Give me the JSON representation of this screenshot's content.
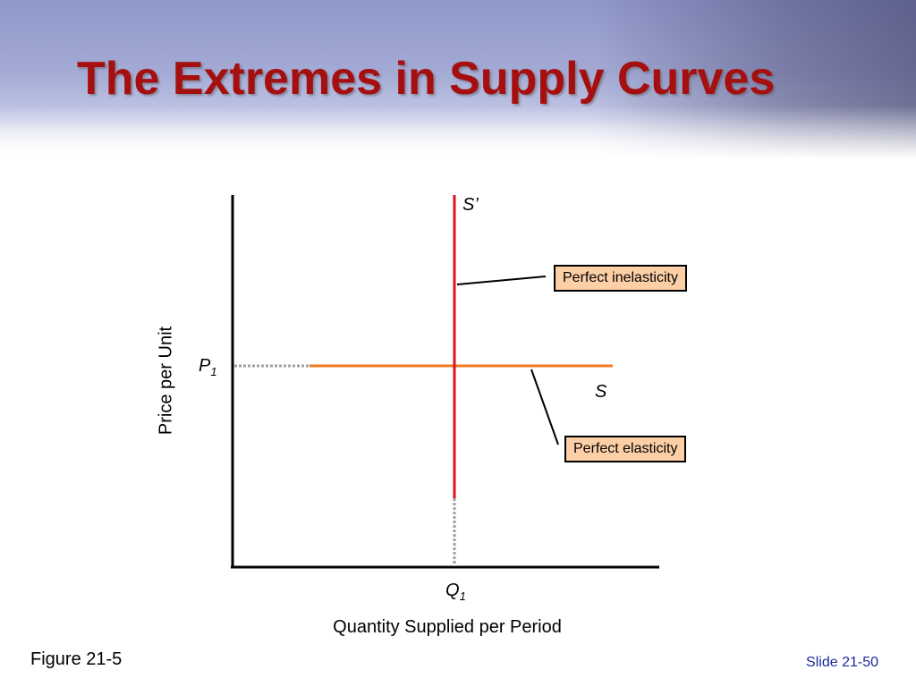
{
  "slide": {
    "title": "The Extremes in Supply Curves",
    "figure_label": "Figure 21-5",
    "slide_number": "Slide 21-50"
  },
  "diagram": {
    "y_axis_label": "Price per Unit",
    "x_axis_label": "Quantity Supplied per Period",
    "price_label": "P",
    "price_subscript": "1",
    "quantity_label": "Q",
    "quantity_subscript": "1",
    "vertical_curve_label": "S’",
    "horizontal_curve_label": "S",
    "callout_inelastic": "Perfect inelasticity",
    "callout_elastic": "Perfect elasticity",
    "colors": {
      "vertical_curve": "#d9161c",
      "horizontal_curve": "#f07a22",
      "guide": "#a0a0a0",
      "callout_fill": "#fdcfa6",
      "title": "#a50f0f"
    }
  }
}
